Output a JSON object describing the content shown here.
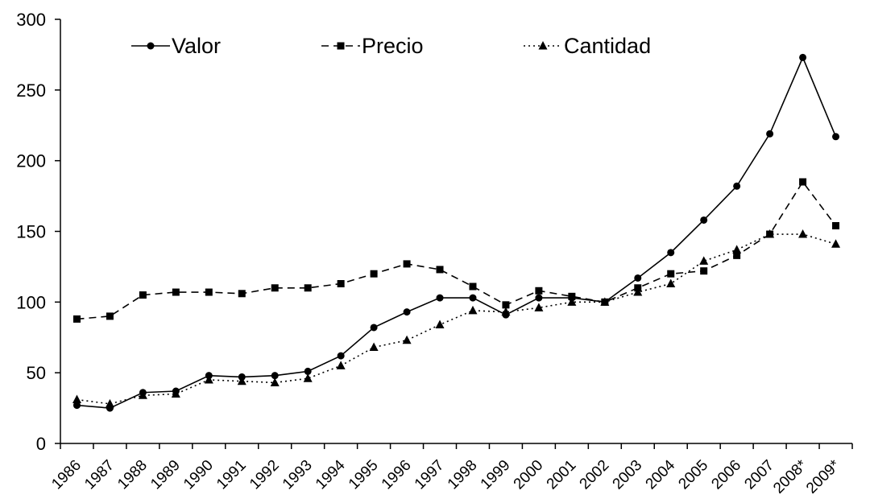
{
  "chart_data": {
    "type": "line",
    "title": "",
    "xlabel": "",
    "ylabel": "",
    "ylim": [
      0,
      300
    ],
    "yticks": [
      0,
      50,
      100,
      150,
      200,
      250,
      300
    ],
    "categories": [
      "1986",
      "1987",
      "1988",
      "1989",
      "1990",
      "1991",
      "1992",
      "1993",
      "1994",
      "1995",
      "1996",
      "1997",
      "1998",
      "1999",
      "2000",
      "2001",
      "2002",
      "2003",
      "2004",
      "2005",
      "2006",
      "2007",
      "2008*",
      "2009*"
    ],
    "grid": false,
    "legend_position": "top",
    "series": [
      {
        "name": "Valor",
        "marker": "circle",
        "line": "solid",
        "values": [
          27,
          25,
          36,
          37,
          48,
          47,
          48,
          51,
          62,
          82,
          93,
          103,
          103,
          91,
          103,
          103,
          100,
          117,
          135,
          158,
          182,
          219,
          273,
          217
        ]
      },
      {
        "name": "Precio",
        "marker": "square",
        "line": "dashed",
        "values": [
          88,
          90,
          105,
          107,
          107,
          106,
          110,
          110,
          113,
          120,
          127,
          123,
          111,
          98,
          108,
          104,
          100,
          110,
          120,
          122,
          133,
          148,
          185,
          154
        ]
      },
      {
        "name": "Cantidad",
        "marker": "triangle",
        "line": "dotted",
        "values": [
          31,
          28,
          34,
          35,
          45,
          44,
          43,
          46,
          55,
          68,
          73,
          84,
          94,
          93,
          96,
          100,
          100,
          107,
          113,
          129,
          137,
          148,
          148,
          141
        ]
      }
    ]
  }
}
